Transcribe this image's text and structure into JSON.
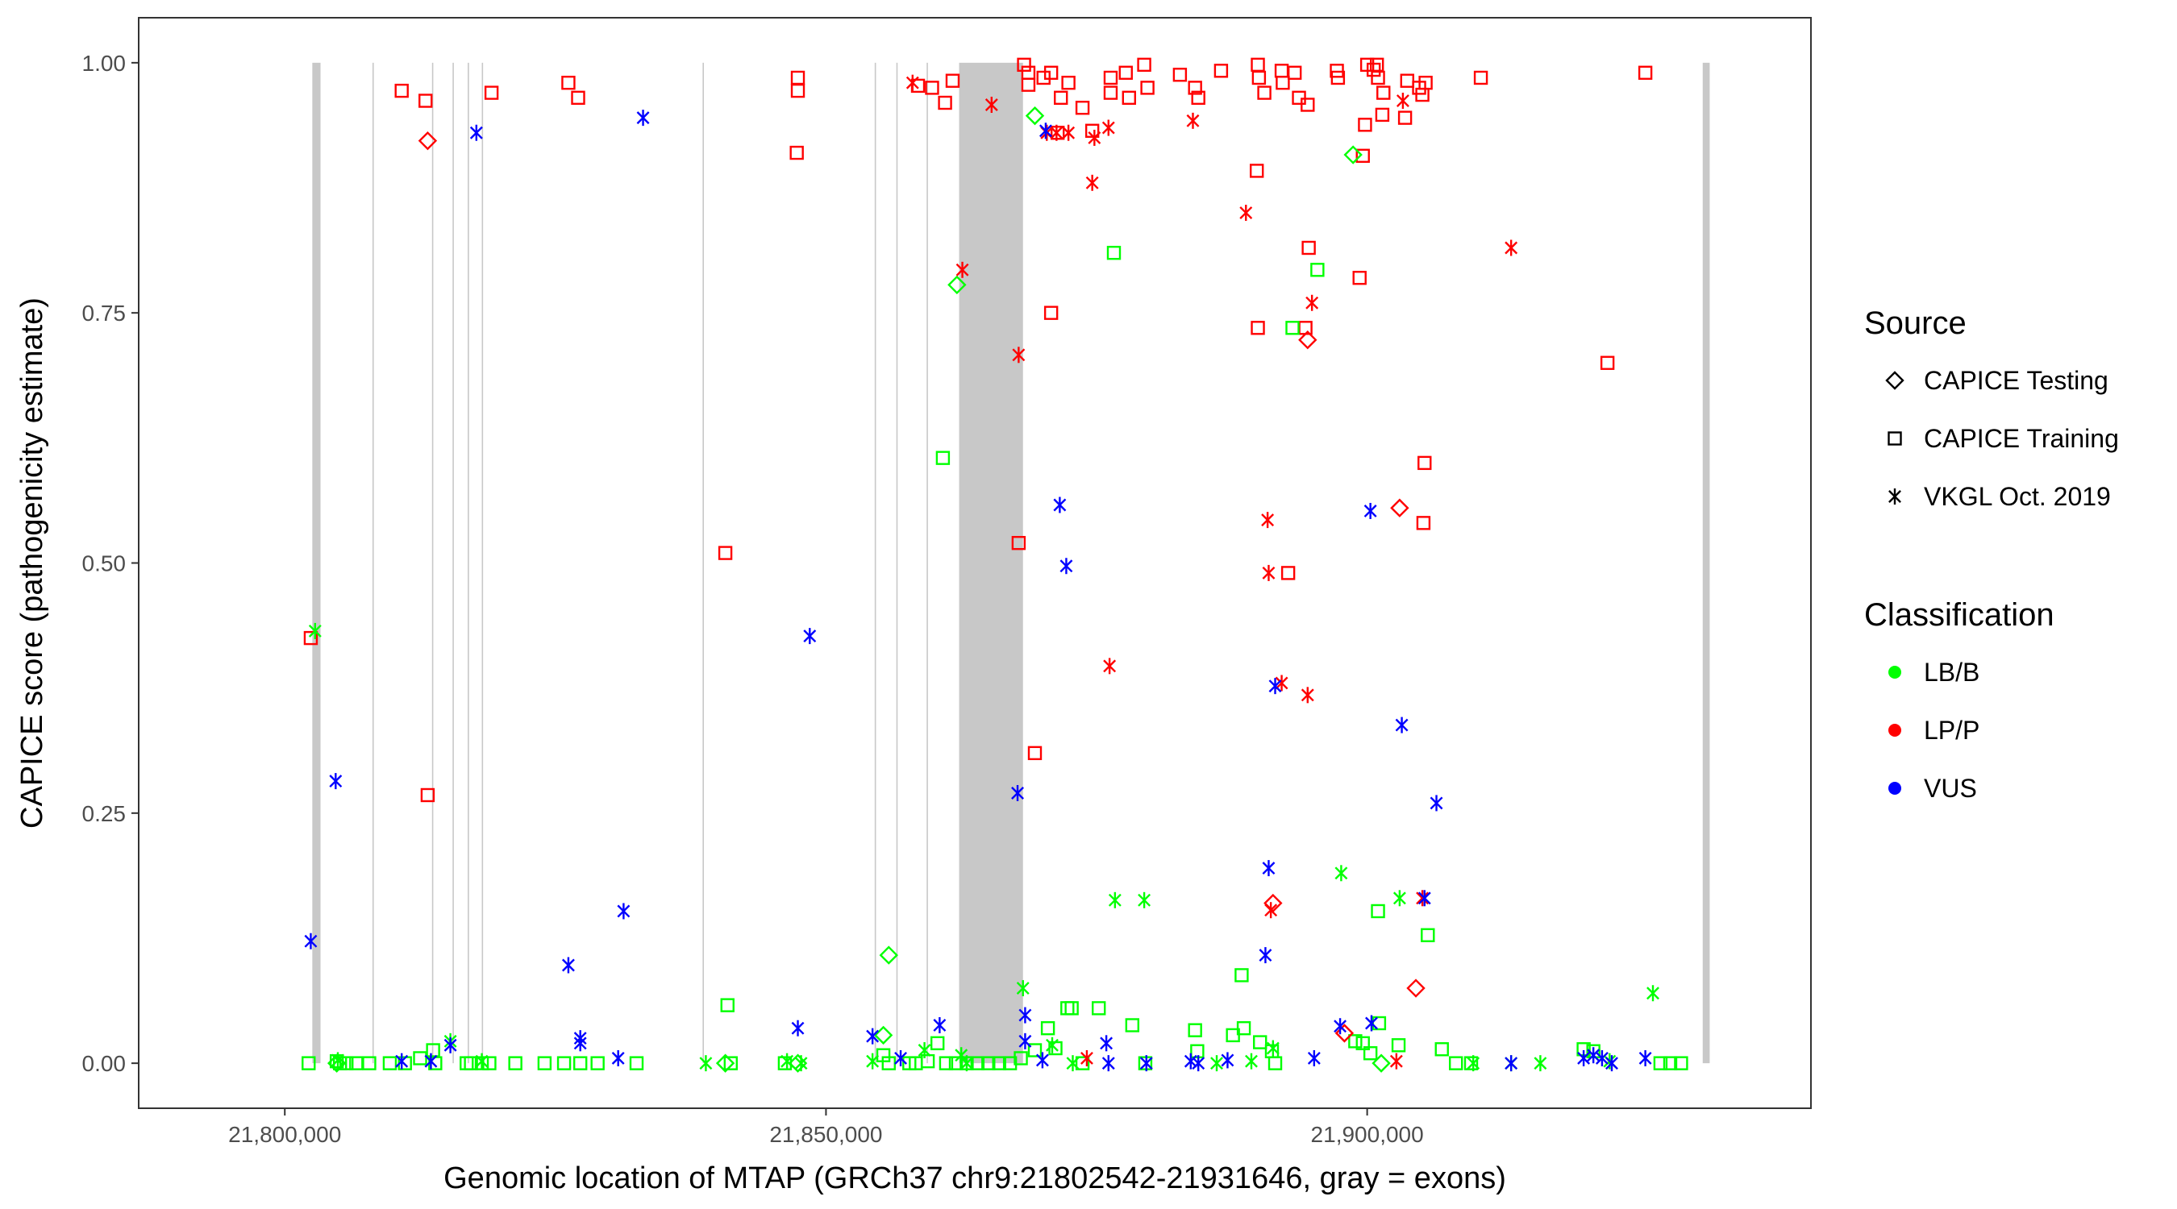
{
  "chart_data": {
    "type": "scatter",
    "xlabel": "Genomic location of MTAP (GRCh37 chr9:21802542-21931646, gray = exons)",
    "ylabel": "CAPICE score (pathogenicity estimate)",
    "xlim": [
      21786500,
      21941000
    ],
    "ylim": [
      -0.045,
      1.045
    ],
    "xticks": [
      21800000,
      21850000,
      21900000
    ],
    "xtick_labels": [
      "21,800,000",
      "21,850,000",
      "21,900,000"
    ],
    "yticks": [
      0,
      0.25,
      0.5,
      0.75,
      1
    ],
    "ytick_labels": [
      "0.00",
      "0.25",
      "0.50",
      "0.75",
      "1.00"
    ],
    "grid": false,
    "legend_position": "right",
    "exons": [
      [
        21802542,
        21803300
      ],
      [
        21808100,
        21808200
      ],
      [
        21813600,
        21813700
      ],
      [
        21815500,
        21815600
      ],
      [
        21816900,
        21817000
      ],
      [
        21818200,
        21818300
      ],
      [
        21838600,
        21838700
      ],
      [
        21854500,
        21854600
      ],
      [
        21856500,
        21856600
      ],
      [
        21859300,
        21859400
      ],
      [
        21862300,
        21868200
      ],
      [
        21931000,
        21931646
      ]
    ],
    "legends": {
      "source": {
        "title": "Source",
        "entries": [
          {
            "key": "testing",
            "label": "CAPICE Testing",
            "shape": "diamond"
          },
          {
            "key": "training",
            "label": "CAPICE Training",
            "shape": "square"
          },
          {
            "key": "vkgl",
            "label": "VKGL Oct. 2019",
            "shape": "asterisk"
          }
        ]
      },
      "classification": {
        "title": "Classification",
        "entries": [
          {
            "key": "LB/B",
            "label": "LB/B",
            "color": "#00ff00"
          },
          {
            "key": "LP/P",
            "label": "LP/P",
            "color": "#ff0000"
          },
          {
            "key": "VUS",
            "label": "VUS",
            "color": "#0000ff"
          }
        ]
      }
    },
    "series": [
      {
        "name": "CAPICE Training - LP/P",
        "source": "training",
        "classification": "LP/P",
        "points": [
          [
            21802400,
            0.425
          ],
          [
            21810800,
            0.972
          ],
          [
            21813000,
            0.962
          ],
          [
            21813200,
            0.268
          ],
          [
            21819100,
            0.97
          ],
          [
            21826200,
            0.98
          ],
          [
            21827100,
            0.965
          ],
          [
            21840700,
            0.51
          ],
          [
            21847300,
            0.91
          ],
          [
            21847400,
            0.985
          ],
          [
            21847400,
            0.972
          ],
          [
            21858500,
            0.977
          ],
          [
            21859800,
            0.975
          ],
          [
            21861000,
            0.96
          ],
          [
            21861700,
            0.982
          ],
          [
            21867800,
            0.52
          ],
          [
            21868300,
            0.998
          ],
          [
            21868700,
            0.99
          ],
          [
            21868700,
            0.978
          ],
          [
            21869300,
            0.31
          ],
          [
            21870100,
            0.985
          ],
          [
            21870800,
            0.75
          ],
          [
            21870800,
            0.99
          ],
          [
            21871400,
            0.93
          ],
          [
            21871700,
            0.965
          ],
          [
            21872400,
            0.98
          ],
          [
            21873700,
            0.955
          ],
          [
            21874600,
            0.932
          ],
          [
            21876300,
            0.985
          ],
          [
            21876300,
            0.97
          ],
          [
            21877700,
            0.99
          ],
          [
            21878000,
            0.965
          ],
          [
            21879400,
            0.998
          ],
          [
            21879700,
            0.975
          ],
          [
            21882700,
            0.988
          ],
          [
            21884100,
            0.975
          ],
          [
            21884400,
            0.965
          ],
          [
            21886500,
            0.992
          ],
          [
            21889800,
            0.892
          ],
          [
            21889900,
            0.735
          ],
          [
            21889900,
            0.998
          ],
          [
            21890000,
            0.985
          ],
          [
            21890500,
            0.97
          ],
          [
            21892100,
            0.992
          ],
          [
            21892200,
            0.98
          ],
          [
            21892700,
            0.49
          ],
          [
            21893300,
            0.99
          ],
          [
            21893700,
            0.965
          ],
          [
            21894300,
            0.735
          ],
          [
            21894500,
            0.958
          ],
          [
            21894600,
            0.815
          ],
          [
            21897200,
            0.992
          ],
          [
            21897300,
            0.985
          ],
          [
            21899300,
            0.785
          ],
          [
            21899600,
            0.907
          ],
          [
            21899800,
            0.938
          ],
          [
            21900000,
            0.998
          ],
          [
            21900600,
            0.993
          ],
          [
            21900900,
            0.998
          ],
          [
            21901000,
            0.985
          ],
          [
            21901400,
            0.948
          ],
          [
            21901500,
            0.97
          ],
          [
            21903500,
            0.945
          ],
          [
            21903700,
            0.982
          ],
          [
            21904800,
            0.975
          ],
          [
            21905100,
            0.968
          ],
          [
            21905200,
            0.54
          ],
          [
            21905300,
            0.6
          ],
          [
            21905400,
            0.98
          ],
          [
            21910500,
            0.985
          ],
          [
            21925700,
            0.99
          ],
          [
            21922200,
            0.7
          ]
        ]
      },
      {
        "name": "CAPICE Training - LB/B",
        "source": "training",
        "classification": "LB/B",
        "points": [
          [
            21802200,
            0
          ],
          [
            21804800,
            0.002
          ],
          [
            21805100,
            0
          ],
          [
            21805700,
            0
          ],
          [
            21806600,
            0
          ],
          [
            21807800,
            0
          ],
          [
            21809700,
            0
          ],
          [
            21811100,
            0
          ],
          [
            21812500,
            0.005
          ],
          [
            21813700,
            0.013
          ],
          [
            21813900,
            0
          ],
          [
            21816800,
            0
          ],
          [
            21817200,
            0
          ],
          [
            21818200,
            0
          ],
          [
            21818900,
            0
          ],
          [
            21821300,
            0
          ],
          [
            21824000,
            0
          ],
          [
            21825800,
            0
          ],
          [
            21827300,
            0
          ],
          [
            21828900,
            0
          ],
          [
            21832500,
            0
          ],
          [
            21840900,
            0.058
          ],
          [
            21841200,
            0
          ],
          [
            21846200,
            0
          ],
          [
            21855300,
            0.008
          ],
          [
            21855800,
            0
          ],
          [
            21857700,
            0
          ],
          [
            21858300,
            0
          ],
          [
            21859400,
            0.002
          ],
          [
            21860300,
            0.02
          ],
          [
            21860800,
            0.605
          ],
          [
            21861100,
            0
          ],
          [
            21862000,
            0
          ],
          [
            21863000,
            0
          ],
          [
            21864000,
            0
          ],
          [
            21865000,
            0
          ],
          [
            21866000,
            0
          ],
          [
            21867000,
            0
          ],
          [
            21868000,
            0.005
          ],
          [
            21869300,
            0.013
          ],
          [
            21870500,
            0.035
          ],
          [
            21871200,
            0.015
          ],
          [
            21872300,
            0.055
          ],
          [
            21872700,
            0.055
          ],
          [
            21873700,
            0
          ],
          [
            21875200,
            0.055
          ],
          [
            21876600,
            0.81
          ],
          [
            21878300,
            0.038
          ],
          [
            21879500,
            0
          ],
          [
            21884100,
            0.033
          ],
          [
            21884300,
            0.012
          ],
          [
            21887600,
            0.028
          ],
          [
            21888400,
            0.088
          ],
          [
            21888600,
            0.035
          ],
          [
            21890100,
            0.021
          ],
          [
            21891200,
            0.012
          ],
          [
            21891500,
            0
          ],
          [
            21893100,
            0.735
          ],
          [
            21895400,
            0.793
          ],
          [
            21898900,
            0.022
          ],
          [
            21899600,
            0.02
          ],
          [
            21900300,
            0.01
          ],
          [
            21901000,
            0.152
          ],
          [
            21901100,
            0.04
          ],
          [
            21902900,
            0.018
          ],
          [
            21905600,
            0.128
          ],
          [
            21906900,
            0.014
          ],
          [
            21908200,
            0
          ],
          [
            21909600,
            0
          ],
          [
            21920000,
            0.014
          ],
          [
            21920900,
            0.012
          ],
          [
            21927100,
            0
          ],
          [
            21928000,
            0
          ],
          [
            21929000,
            0
          ]
        ]
      },
      {
        "name": "CAPICE Testing - LP/P",
        "source": "testing",
        "classification": "LP/P",
        "points": [
          [
            21813200,
            0.922
          ],
          [
            21894500,
            0.723
          ],
          [
            21891300,
            0.16
          ],
          [
            21897900,
            0.03
          ],
          [
            21903000,
            0.555
          ],
          [
            21904500,
            0.075
          ]
        ]
      },
      {
        "name": "CAPICE Testing - LB/B",
        "source": "testing",
        "classification": "LB/B",
        "points": [
          [
            21855300,
            0.028
          ],
          [
            21855800,
            0.108
          ],
          [
            21862100,
            0.778
          ],
          [
            21869300,
            0.947
          ],
          [
            21898700,
            0.908
          ],
          [
            21804800,
            0
          ],
          [
            21840700,
            0
          ],
          [
            21847400,
            0
          ],
          [
            21901300,
            0
          ]
        ]
      },
      {
        "name": "VKGL Oct. 2019 - LP/P",
        "source": "vkgl",
        "classification": "LP/P",
        "points": [
          [
            21858000,
            0.98
          ],
          [
            21862600,
            0.793
          ],
          [
            21865300,
            0.958
          ],
          [
            21867800,
            0.708
          ],
          [
            21870400,
            0.93
          ],
          [
            21871300,
            0.93
          ],
          [
            21872400,
            0.93
          ],
          [
            21874600,
            0.88
          ],
          [
            21874800,
            0.925
          ],
          [
            21876100,
            0.935
          ],
          [
            21876200,
            0.397
          ],
          [
            21883900,
            0.942
          ],
          [
            21888800,
            0.85
          ],
          [
            21890800,
            0.543
          ],
          [
            21890900,
            0.49
          ],
          [
            21891100,
            0.153
          ],
          [
            21892100,
            0.38
          ],
          [
            21894500,
            0.368
          ],
          [
            21894900,
            0.76
          ],
          [
            21903300,
            0.962
          ],
          [
            21905100,
            0.165
          ],
          [
            21913300,
            0.815
          ],
          [
            21874100,
            0.005
          ],
          [
            21902700,
            0.002
          ]
        ]
      },
      {
        "name": "VKGL Oct. 2019 - LB/B",
        "source": "vkgl",
        "classification": "LB/B",
        "points": [
          [
            21802800,
            0.432
          ],
          [
            21804900,
            0.003
          ],
          [
            21815300,
            0.022
          ],
          [
            21818200,
            0.002
          ],
          [
            21838900,
            0
          ],
          [
            21846400,
            0.002
          ],
          [
            21847700,
            0
          ],
          [
            21854300,
            0.002
          ],
          [
            21859100,
            0.013
          ],
          [
            21862500,
            0.008
          ],
          [
            21863000,
            0
          ],
          [
            21868200,
            0.075
          ],
          [
            21870900,
            0.018
          ],
          [
            21872800,
            0
          ],
          [
            21876700,
            0.163
          ],
          [
            21879400,
            0.163
          ],
          [
            21886100,
            0
          ],
          [
            21889300,
            0.002
          ],
          [
            21891300,
            0.015
          ],
          [
            21897600,
            0.19
          ],
          [
            21903000,
            0.165
          ],
          [
            21909800,
            0
          ],
          [
            21913300,
            0
          ],
          [
            21916000,
            0
          ],
          [
            21922400,
            0.002
          ],
          [
            21926400,
            0.07
          ]
        ]
      },
      {
        "name": "VKGL Oct. 2019 - VUS",
        "source": "vkgl",
        "classification": "VUS",
        "points": [
          [
            21802400,
            0.122
          ],
          [
            21804700,
            0.282
          ],
          [
            21810800,
            0.002
          ],
          [
            21813500,
            0.002
          ],
          [
            21815300,
            0.018
          ],
          [
            21817700,
            0.93
          ],
          [
            21826200,
            0.098
          ],
          [
            21827300,
            0.025
          ],
          [
            21827300,
            0.02
          ],
          [
            21830800,
            0.005
          ],
          [
            21831300,
            0.152
          ],
          [
            21833100,
            0.945
          ],
          [
            21847400,
            0.035
          ],
          [
            21848500,
            0.427
          ],
          [
            21854300,
            0.027
          ],
          [
            21856900,
            0.005
          ],
          [
            21860500,
            0.038
          ],
          [
            21867700,
            0.27
          ],
          [
            21868400,
            0.048
          ],
          [
            21868400,
            0.022
          ],
          [
            21870000,
            0.003
          ],
          [
            21870300,
            0.932
          ],
          [
            21871600,
            0.558
          ],
          [
            21872200,
            0.497
          ],
          [
            21875900,
            0.02
          ],
          [
            21876100,
            0
          ],
          [
            21879600,
            0
          ],
          [
            21883700,
            0.002
          ],
          [
            21884400,
            0
          ],
          [
            21887100,
            0.003
          ],
          [
            21890600,
            0.108
          ],
          [
            21890900,
            0.195
          ],
          [
            21891500,
            0.377
          ],
          [
            21895100,
            0.005
          ],
          [
            21897500,
            0.037
          ],
          [
            21900300,
            0.552
          ],
          [
            21900400,
            0.04
          ],
          [
            21903200,
            0.338
          ],
          [
            21905300,
            0.165
          ],
          [
            21906400,
            0.26
          ],
          [
            21913300,
            0
          ],
          [
            21920000,
            0.005
          ],
          [
            21920900,
            0.008
          ],
          [
            21921700,
            0.005
          ],
          [
            21922600,
            0
          ],
          [
            21925700,
            0.005
          ]
        ]
      }
    ]
  }
}
